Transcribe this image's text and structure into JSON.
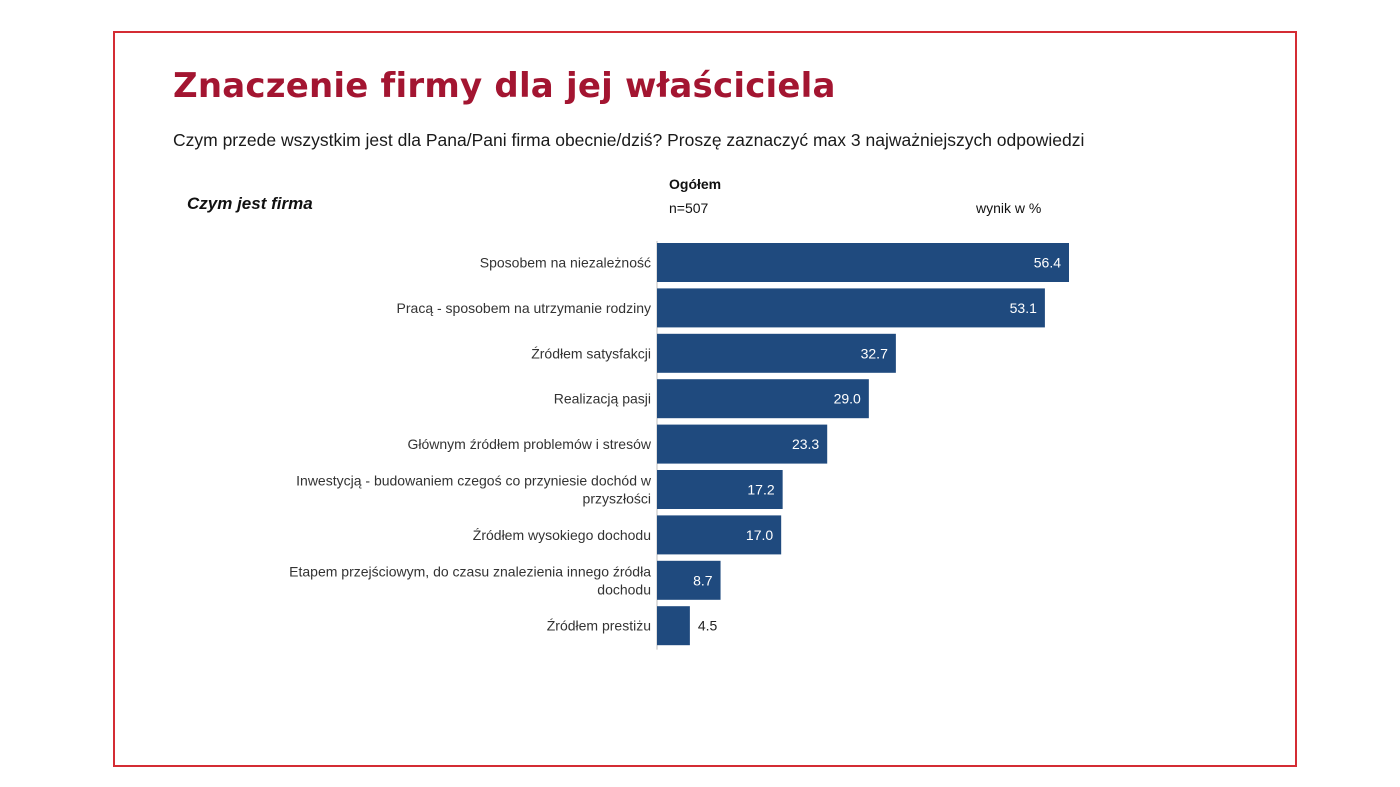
{
  "title": "Znaczenie firmy dla jej właściciela",
  "subtitle": "Czym przede wszystkim jest dla Pana/Pani firma obecnie/dziś? Proszę zaznaczyć max 3 najważniejszych odpowiedzi",
  "category_header": "Czym jest firma",
  "group_label": "Ogółem",
  "sample_label": "n=507",
  "unit_label": "wynik w %",
  "colors": {
    "bar": "#1f4a7e",
    "title": "#a31531",
    "frame": "#d42c34"
  },
  "chart_data": {
    "type": "bar",
    "orientation": "horizontal",
    "categories": [
      [
        "Sposobem na niezależność"
      ],
      [
        "Pracą - sposobem na utrzymanie rodziny"
      ],
      [
        "Źródłem satysfakcji"
      ],
      [
        "Realizacją pasji"
      ],
      [
        "Głównym źródłem problemów i stresów"
      ],
      [
        "Inwestycją - budowaniem czegoś co przyniesie dochód w",
        "przyszłości"
      ],
      [
        "Źródłem wysokiego dochodu"
      ],
      [
        "Etapem przejściowym, do czasu znalezienia innego źródła",
        "dochodu"
      ],
      [
        "Źródłem prestiżu"
      ]
    ],
    "values": [
      56.4,
      53.1,
      32.7,
      29.0,
      23.3,
      17.2,
      17.0,
      8.7,
      4.5
    ],
    "value_labels": [
      "56.4",
      "53.1",
      "32.7",
      "29.0",
      "23.3",
      "17.2",
      "17.0",
      "8.7",
      "4.5"
    ],
    "xlim": [
      0,
      56.4
    ],
    "grid": false,
    "legend": "none"
  }
}
